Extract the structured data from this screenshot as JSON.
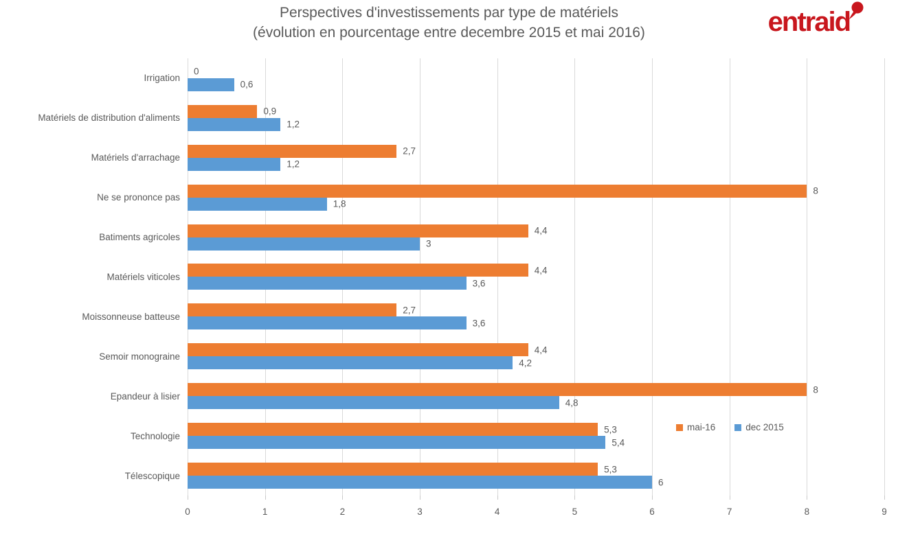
{
  "title": {
    "line1": "Perspectives d'investissements par type de matériels",
    "line2": "(évolution en pourcentage entre decembre 2015 et mai 2016)"
  },
  "logo": {
    "text": "entraid",
    "color": "#c8161d"
  },
  "chart_data": {
    "type": "bar",
    "orientation": "horizontal",
    "title": "Perspectives d'investissements par type de matériels (évolution en pourcentage entre decembre 2015 et mai 2016)",
    "categories": [
      "Irrigation",
      "Matériels de distribution d'aliments",
      "Matériels d'arrachage",
      "Ne se prononce pas",
      "Batiments agricoles",
      "Matériels viticoles",
      "Moissonneuse batteuse",
      "Semoir monograine",
      "Epandeur à lisier",
      "Technologie",
      "Télescopique"
    ],
    "series": [
      {
        "name": "mai-16",
        "color": "#ED7D31",
        "values": [
          0,
          0.9,
          2.7,
          8,
          4.4,
          4.4,
          2.7,
          4.4,
          8,
          5.3,
          5.3
        ],
        "labels": [
          "0",
          "0,9",
          "2,7",
          "8",
          "4,4",
          "4,4",
          "2,7",
          "4,4",
          "8",
          "5,3",
          "5,3"
        ]
      },
      {
        "name": "dec 2015",
        "color": "#5B9BD5",
        "values": [
          0.6,
          1.2,
          1.2,
          1.8,
          3,
          3.6,
          3.6,
          4.2,
          4.8,
          5.4,
          6
        ],
        "labels": [
          "0,6",
          "1,2",
          "1,2",
          "1,8",
          "3",
          "3,6",
          "3,6",
          "4,2",
          "4,8",
          "5,4",
          "6"
        ]
      }
    ],
    "xlim": [
      0,
      9
    ],
    "x_ticks": [
      "0",
      "1",
      "2",
      "3",
      "4",
      "5",
      "6",
      "7",
      "8",
      "9"
    ],
    "grid": true,
    "gridline_color": "#d9d9d9",
    "text_color": "#595959",
    "legend_position": "inside-right",
    "xlabel": "",
    "ylabel": ""
  }
}
